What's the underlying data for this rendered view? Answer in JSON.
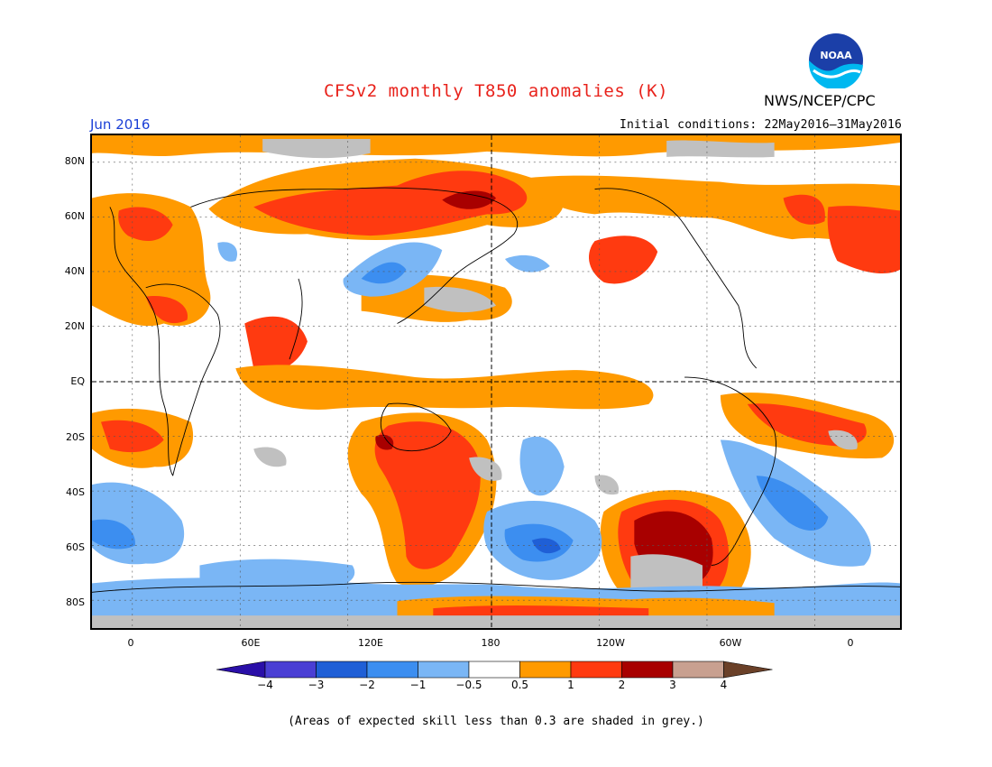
{
  "header": {
    "title": "CFSv2 monthly T850 anomalies (K)",
    "agency": "NWS/NCEP/CPC",
    "logo_text": "NOAA",
    "month": "Jun 2016",
    "initial_conditions": "Initial conditions: 22May2016–31May2016"
  },
  "map": {
    "lat_labels": [
      "80N",
      "60N",
      "40N",
      "20N",
      "EQ",
      "20S",
      "40S",
      "60S",
      "80S"
    ],
    "lon_labels": [
      "0",
      "60E",
      "120E",
      "180",
      "120W",
      "60W",
      "0"
    ],
    "projection": "cylindrical equidistant, centered on 180"
  },
  "colorbar": {
    "labels": [
      "−4",
      "−3",
      "−2",
      "−1",
      "−0.5",
      "0.5",
      "1",
      "2",
      "3",
      "4"
    ],
    "colors": [
      "#2a0fa8",
      "#4a3fd4",
      "#1f5fd6",
      "#3c8ef0",
      "#7ab6f5",
      "#ffffff",
      "#ff9a00",
      "#ff3a10",
      "#a80000",
      "#c8a090",
      "#6a4028"
    ]
  },
  "footnote": "(Areas of expected skill less than 0.3 are shaded in grey.)"
}
